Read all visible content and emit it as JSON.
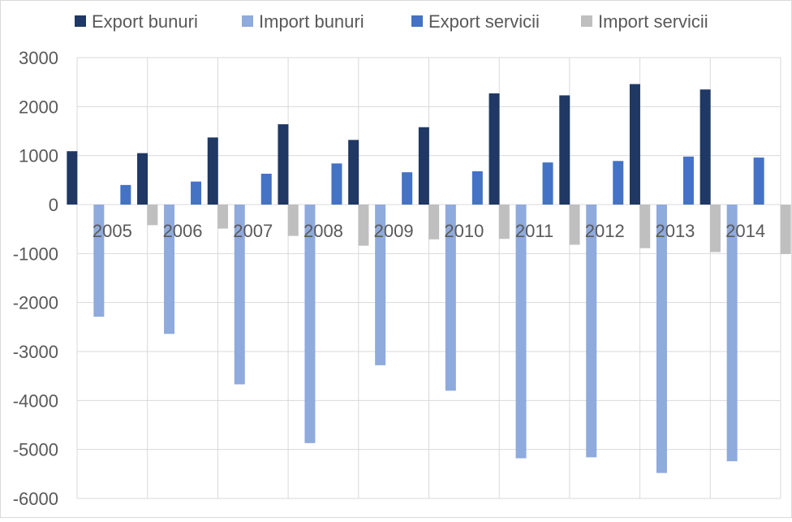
{
  "chart_data": {
    "type": "bar",
    "categories": [
      "2005",
      "2006",
      "2007",
      "2008",
      "2009",
      "2010",
      "2011",
      "2012",
      "2013",
      "2014"
    ],
    "series": [
      {
        "name": "Export bunuri",
        "color": "#1f3864",
        "values": [
          1090,
          1050,
          1370,
          1640,
          1320,
          1580,
          2270,
          2230,
          2460,
          2350
        ]
      },
      {
        "name": "Import bunuri",
        "color": "#8faadc",
        "values": [
          -2290,
          -2640,
          -3670,
          -4870,
          -3280,
          -3800,
          -5180,
          -5160,
          -5480,
          -5240
        ]
      },
      {
        "name": "Export servicii",
        "color": "#4472c4",
        "values": [
          400,
          470,
          630,
          840,
          660,
          680,
          860,
          890,
          980,
          960
        ]
      },
      {
        "name": "Import servicii",
        "color": "#bfbfbf",
        "values": [
          -420,
          -490,
          -640,
          -840,
          -710,
          -700,
          -820,
          -890,
          -970,
          -1010
        ]
      }
    ],
    "yticks": [
      3000,
      2000,
      1000,
      0,
      -1000,
      -2000,
      -3000,
      -4000,
      -5000,
      -6000
    ],
    "ylim": [
      -6000,
      3000
    ],
    "grid": true,
    "legend_position": "top",
    "title": "",
    "xlabel": "",
    "ylabel": ""
  }
}
